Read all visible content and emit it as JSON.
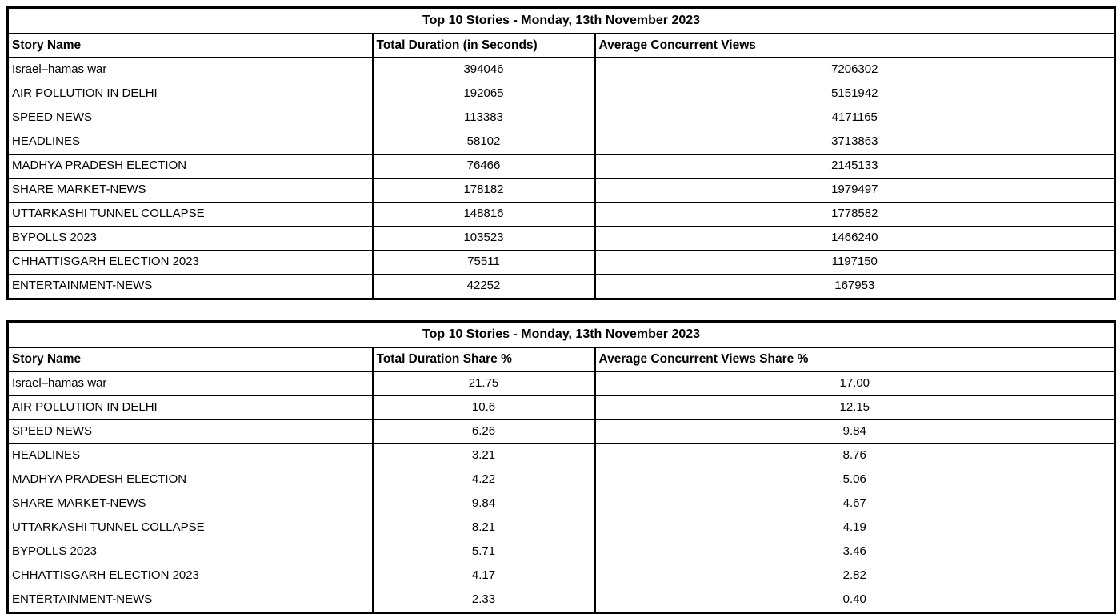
{
  "tables": [
    {
      "title": "Top 10 Stories - Monday, 13th November 2023",
      "columns": [
        "Story Name",
        "Total Duration (in Seconds)",
        "Average Concurrent Views"
      ],
      "rows": [
        {
          "name": "Israel–hamas war",
          "col2": "394046",
          "col3": "7206302"
        },
        {
          "name": "AIR POLLUTION IN DELHI",
          "col2": "192065",
          "col3": "5151942"
        },
        {
          "name": "SPEED NEWS",
          "col2": "113383",
          "col3": "4171165"
        },
        {
          "name": "HEADLINES",
          "col2": "58102",
          "col3": "3713863"
        },
        {
          "name": "MADHYA PRADESH ELECTION",
          "col2": "76466",
          "col3": "2145133"
        },
        {
          "name": "SHARE MARKET-NEWS",
          "col2": "178182",
          "col3": "1979497"
        },
        {
          "name": "UTTARKASHI TUNNEL COLLAPSE",
          "col2": "148816",
          "col3": "1778582"
        },
        {
          "name": "BYPOLLS 2023",
          "col2": "103523",
          "col3": "1466240"
        },
        {
          "name": "CHHATTISGARH ELECTION 2023",
          "col2": "75511",
          "col3": "1197150"
        },
        {
          "name": "ENTERTAINMENT-NEWS",
          "col2": "42252",
          "col3": "167953"
        }
      ]
    },
    {
      "title": "Top 10 Stories - Monday, 13th November 2023",
      "columns": [
        "Story Name",
        "Total Duration Share %",
        "Average Concurrent Views Share %"
      ],
      "rows": [
        {
          "name": "Israel–hamas war",
          "col2": "21.75",
          "col3": "17.00"
        },
        {
          "name": "AIR POLLUTION IN DELHI",
          "col2": "10.6",
          "col3": "12.15"
        },
        {
          "name": "SPEED NEWS",
          "col2": "6.26",
          "col3": "9.84"
        },
        {
          "name": "HEADLINES",
          "col2": "3.21",
          "col3": "8.76"
        },
        {
          "name": "MADHYA PRADESH ELECTION",
          "col2": "4.22",
          "col3": "5.06"
        },
        {
          "name": "SHARE MARKET-NEWS",
          "col2": "9.84",
          "col3": "4.67"
        },
        {
          "name": "UTTARKASHI TUNNEL COLLAPSE",
          "col2": "8.21",
          "col3": "4.19"
        },
        {
          "name": "BYPOLLS 2023",
          "col2": "5.71",
          "col3": "3.46"
        },
        {
          "name": "CHHATTISGARH ELECTION 2023",
          "col2": "4.17",
          "col3": "2.82"
        },
        {
          "name": "ENTERTAINMENT-NEWS",
          "col2": "2.33",
          "col3": "0.40"
        }
      ]
    }
  ],
  "colors": {
    "border": "#000000",
    "text": "#000000",
    "background": "#ffffff"
  }
}
